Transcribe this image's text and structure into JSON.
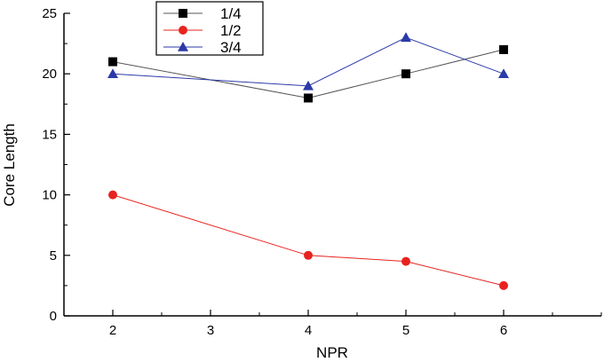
{
  "chart_data": {
    "type": "line",
    "xlabel": "NPR",
    "ylabel": "Core Length",
    "xlim": [
      1.5,
      7
    ],
    "ylim": [
      0,
      25
    ],
    "x_ticks": [
      2,
      3,
      4,
      5,
      6
    ],
    "y_ticks": [
      0,
      5,
      10,
      15,
      20,
      25
    ],
    "grid": false,
    "legend_position": "top-left",
    "series": [
      {
        "name": "1/4",
        "x": [
          2,
          4,
          5,
          6
        ],
        "values": [
          21,
          18,
          20,
          22
        ],
        "color": "#000000",
        "line_color": "#555555",
        "marker": "square"
      },
      {
        "name": "1/2",
        "x": [
          2,
          4,
          5,
          6
        ],
        "values": [
          10,
          5,
          4.5,
          2.5
        ],
        "color": "#e8231f",
        "line_color": "#e8231f",
        "marker": "circle"
      },
      {
        "name": "3/4",
        "x": [
          2,
          4,
          5,
          6
        ],
        "values": [
          20,
          19,
          23,
          20
        ],
        "color": "#2b3aa8",
        "line_color": "#2b3aa8",
        "marker": "triangle"
      }
    ]
  }
}
